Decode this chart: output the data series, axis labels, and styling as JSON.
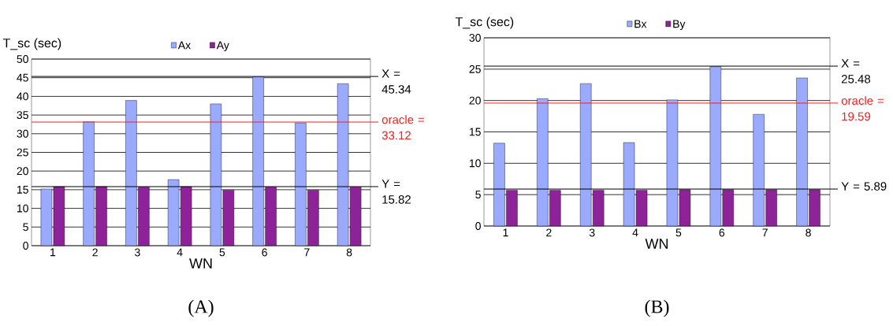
{
  "chart_data": [
    {
      "type": "bar",
      "xlabel": "WN",
      "ylabel": "T_sc (sec)",
      "categories": [
        "1",
        "2",
        "3",
        "4",
        "5",
        "6",
        "7",
        "8"
      ],
      "series": [
        {
          "name": "Ax",
          "color": "#99aaff",
          "values": [
            15.2,
            33.2,
            38.9,
            17.7,
            38.0,
            45.2,
            32.9,
            43.4
          ]
        },
        {
          "name": "Ay",
          "color": "#8e2399",
          "values": [
            15.8,
            15.8,
            15.7,
            15.8,
            14.9,
            15.7,
            14.9,
            15.7
          ]
        }
      ],
      "ylim": [
        0,
        50
      ],
      "yticks": [
        0,
        5,
        10,
        15,
        20,
        25,
        30,
        35,
        40,
        45,
        50
      ],
      "grid": "y",
      "legend": "top",
      "ref_lines": [
        {
          "axis": "y",
          "value": 45.34,
          "label": "X = 45.34",
          "color": "#000000"
        },
        {
          "axis": "y",
          "value": 33.12,
          "label": "oracle = 33.12",
          "color": "#ee2222"
        },
        {
          "axis": "y",
          "value": 15.82,
          "label": "Y = 15.82",
          "color": "#000000"
        }
      ],
      "annotations": [
        "(A)"
      ]
    },
    {
      "type": "bar",
      "xlabel": "WN",
      "ylabel": "T_sc (sec)",
      "categories": [
        "1",
        "2",
        "3",
        "4",
        "5",
        "6",
        "7",
        "8"
      ],
      "series": [
        {
          "name": "Bx",
          "color": "#99aaff",
          "values": [
            13.2,
            20.3,
            22.7,
            13.3,
            20.1,
            25.4,
            17.8,
            23.6
          ]
        },
        {
          "name": "By",
          "color": "#8e2399",
          "values": [
            5.7,
            5.7,
            5.7,
            5.7,
            5.8,
            5.8,
            5.8,
            5.8
          ]
        }
      ],
      "ylim": [
        0,
        30
      ],
      "yticks": [
        0,
        5,
        10,
        15,
        20,
        25,
        30
      ],
      "grid": "y",
      "legend": "top",
      "ref_lines": [
        {
          "axis": "y",
          "value": 25.48,
          "label": "X = 25.48",
          "color": "#000000"
        },
        {
          "axis": "y",
          "value": 19.59,
          "label": "oracle = 19.59",
          "color": "#ee2222"
        },
        {
          "axis": "y",
          "value": 5.89,
          "label": "Y = 5.89",
          "color": "#000000"
        }
      ],
      "annotations": [
        "(B)"
      ]
    }
  ]
}
